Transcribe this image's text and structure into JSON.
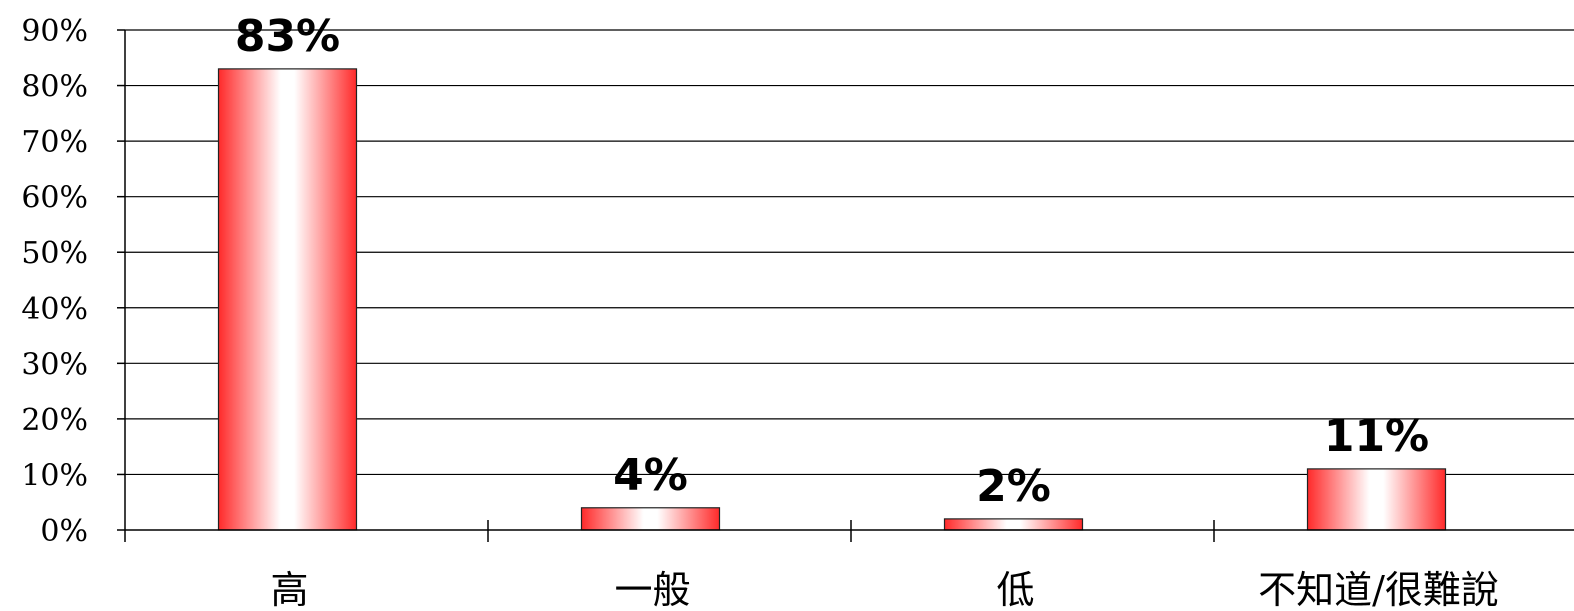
{
  "chart_data": {
    "type": "bar",
    "categories": [
      "高",
      "一般",
      "低",
      "不知道/很難說"
    ],
    "values": [
      83,
      4,
      2,
      11
    ],
    "data_labels": [
      "83%",
      "4%",
      "2%",
      "11%"
    ],
    "yticks": [
      "0%",
      "10%",
      "20%",
      "30%",
      "40%",
      "50%",
      "60%",
      "70%",
      "80%",
      "90%"
    ],
    "ylim": [
      0,
      90
    ],
    "grid": true,
    "legend": "none",
    "bar_color": "#ff2a2a",
    "bar_highlight": "#ffffff"
  }
}
